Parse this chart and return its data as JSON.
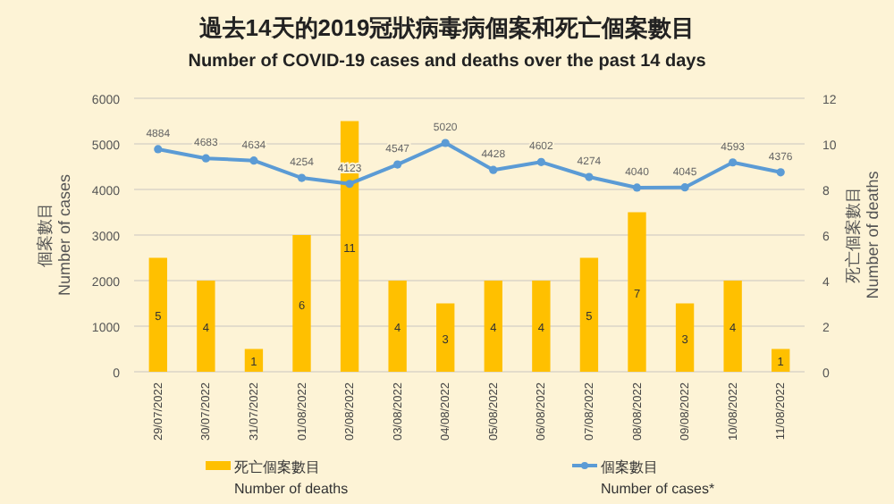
{
  "chart_data": {
    "type": "bar",
    "title": "過去14天的2019冠狀病毒病個案和死亡個案數目",
    "subtitle": "Number of COVID-19 cases and deaths over the past 14 days",
    "ylabel": "個案數目\nNumber of cases",
    "y2label": "死亡個案數目\nNumber of deaths",
    "categories": [
      "29/07/2022",
      "30/07/2022",
      "31/07/2022",
      "01/08/2022",
      "02/08/2022",
      "03/08/2022",
      "04/08/2022",
      "05/08/2022",
      "06/08/2022",
      "07/08/2022",
      "08/08/2022",
      "09/08/2022",
      "10/08/2022",
      "11/08/2022"
    ],
    "series": [
      {
        "name": "死亡個案數目\nNumber of deaths",
        "axis": "y2",
        "color": "#ffc000",
        "values": [
          5,
          4,
          1,
          6,
          11,
          4,
          3,
          4,
          4,
          5,
          7,
          3,
          4,
          1
        ]
      },
      {
        "name": "個案數目\nNumber of cases*",
        "type": "line",
        "color": "#5b9bd5",
        "values": [
          4884,
          4683,
          4634,
          4254,
          4123,
          4547,
          5020,
          4428,
          4602,
          4274,
          4040,
          4045,
          4593,
          4376
        ]
      }
    ],
    "ylim": [
      0,
      6000
    ],
    "yticks": [
      0,
      1000,
      2000,
      3000,
      4000,
      5000,
      6000
    ],
    "y2lim": [
      0,
      12
    ],
    "y2ticks": [
      0,
      2,
      4,
      6,
      8,
      10,
      12
    ],
    "marker": "circle",
    "data_labels": true,
    "grid": "y",
    "legend": "bottom"
  }
}
